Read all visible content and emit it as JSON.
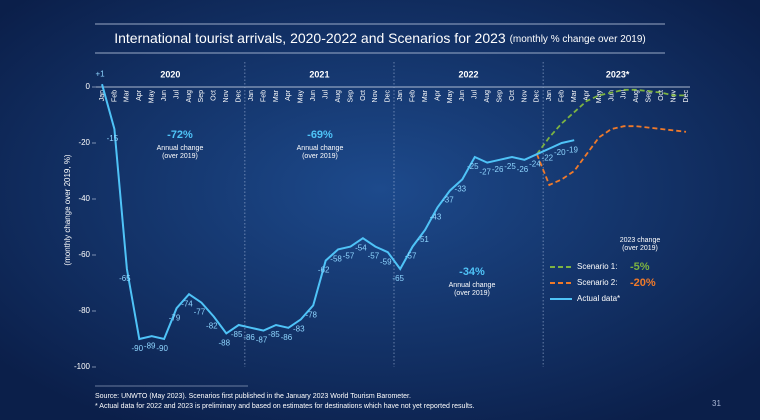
{
  "chart_data": {
    "type": "line",
    "title": "International tourist arrivals, 2020-2022 and Scenarios for 2023",
    "subtitle": "(monthly % change over 2019)",
    "y_label": "(monthly change over 2019, %)",
    "years": [
      "2020",
      "2021",
      "2022",
      "2023*"
    ],
    "categories": [
      "Jan",
      "Feb",
      "Mar",
      "Apr",
      "May",
      "Jun",
      "Jul",
      "Aug",
      "Sep",
      "Oct",
      "Nov",
      "Dec",
      "Jan",
      "Feb",
      "Mar",
      "Apr",
      "May",
      "Jun",
      "Jul",
      "Aug",
      "Sep",
      "Oct",
      "Nov",
      "Dec",
      "Jan",
      "Feb",
      "Mar",
      "Apr",
      "May",
      "Jun",
      "Jul",
      "Aug",
      "Sep",
      "Oct",
      "Nov",
      "Dec",
      "Jan",
      "Feb",
      "Mar",
      "Apr",
      "May",
      "Jun",
      "Jul",
      "Aug",
      "Sep",
      "Oct",
      "Nov",
      "Dec"
    ],
    "ylim": [
      -100,
      0
    ],
    "yticks": [
      0,
      -20,
      -40,
      -60,
      -80,
      -100
    ],
    "series": [
      {
        "name": "Scenario 1:",
        "change_label": "-5%",
        "color": "#7cb342",
        "dashed": true,
        "values": [
          null,
          null,
          null,
          null,
          null,
          null,
          null,
          null,
          null,
          null,
          null,
          null,
          null,
          null,
          null,
          null,
          null,
          null,
          null,
          null,
          null,
          null,
          null,
          null,
          null,
          null,
          null,
          null,
          null,
          null,
          null,
          null,
          null,
          null,
          null,
          -24,
          -18,
          -13,
          -9,
          -5,
          -3,
          -2,
          -1,
          -1,
          -1.5,
          -2,
          -3,
          -3
        ]
      },
      {
        "name": "Scenario 2:",
        "change_label": "-20%",
        "color": "#f07a2a",
        "dashed": true,
        "values": [
          null,
          null,
          null,
          null,
          null,
          null,
          null,
          null,
          null,
          null,
          null,
          null,
          null,
          null,
          null,
          null,
          null,
          null,
          null,
          null,
          null,
          null,
          null,
          null,
          null,
          null,
          null,
          null,
          null,
          null,
          null,
          null,
          null,
          null,
          null,
          -24,
          -35,
          -33,
          -30,
          -24,
          -18,
          -15,
          -14,
          -14,
          -14.5,
          -15,
          -15.5,
          -16
        ]
      },
      {
        "name": "Actual data*",
        "color": "#4fc3f7",
        "dashed": false,
        "values": [
          1,
          -15,
          -65,
          -90,
          -89,
          -90,
          -79,
          -74,
          -77,
          -82,
          -88,
          -85,
          -86,
          -87,
          -85,
          -86,
          -83,
          -78,
          -62,
          -58,
          -57,
          -54,
          -57,
          -59,
          -65,
          -57,
          -51,
          -43,
          -37,
          -33,
          -25,
          -27,
          -26,
          -25,
          -26,
          -24,
          -22,
          -20,
          -19,
          null,
          null,
          null,
          null,
          null,
          null,
          null,
          null,
          null
        ],
        "value_labels": [
          "+1",
          null,
          null,
          null,
          null,
          null,
          null,
          null,
          null,
          null,
          null,
          null,
          null,
          null,
          null,
          null,
          null,
          null,
          null,
          null,
          null,
          null,
          null,
          null,
          null,
          null,
          null,
          null,
          null,
          null,
          null,
          null,
          null,
          null,
          null,
          null,
          null,
          null,
          null,
          null,
          null,
          null,
          null,
          null,
          null,
          null,
          null,
          null
        ]
      }
    ],
    "legend_title": [
      "2023 change",
      "(over 2019)"
    ],
    "annotations": [
      {
        "label": "-72%",
        "lines": [
          "Annual change",
          "(over 2019)"
        ]
      },
      {
        "label": "-69%",
        "lines": [
          "Annual change",
          "(over 2019)"
        ]
      },
      {
        "label": "-34%",
        "lines": [
          "Annual change",
          "(over 2019)"
        ]
      }
    ]
  },
  "footer": {
    "source": "Source: UNWTO (May 2023). Scenarios first published in the January 2023 World Tourism Barometer.",
    "note": "* Actual data for 2022 and 2023 is preliminary and based on estimates for destinations which have not yet reported results.",
    "page": "31"
  }
}
